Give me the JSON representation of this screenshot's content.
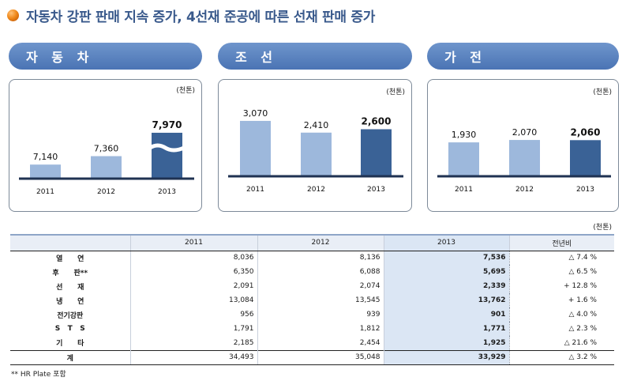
{
  "title": "자동차 강판 판매 지속 증가, 4선재 준공에 따른 선재 판매 증가",
  "sectors": [
    "자 동 차",
    "조 선",
    "가 전"
  ],
  "colors": {
    "light_bar": "#9db8dc",
    "dark_bar": "#3a6296",
    "axis": "#1f3252",
    "wave": "#ffffff"
  },
  "chart_data": [
    {
      "type": "bar",
      "title": "자 동 차",
      "unit": "(천톤)",
      "categories": [
        "2011",
        "2012",
        "2013"
      ],
      "values": [
        7140,
        7360,
        7970
      ],
      "value_labels": [
        "7,140",
        "7,360",
        "7,970"
      ],
      "axis_break": true
    },
    {
      "type": "bar",
      "title": "조 선",
      "unit": "(천톤)",
      "categories": [
        "2011",
        "2012",
        "2013"
      ],
      "values": [
        3070,
        2410,
        2600
      ],
      "value_labels": [
        "3,070",
        "2,410",
        "2,600"
      ],
      "axis_break": false
    },
    {
      "type": "bar",
      "title": "가 전",
      "unit": "(천톤)",
      "categories": [
        "2011",
        "2012",
        "2013"
      ],
      "values": [
        1930,
        2070,
        2060
      ],
      "value_labels": [
        "1,930",
        "2,070",
        "2,060"
      ],
      "axis_break": false
    },
    {
      "type": "table",
      "unit": "(천톤)",
      "columns": [
        "",
        "2011",
        "2012",
        "2013",
        "전년비"
      ],
      "rows": [
        {
          "label": "열      연",
          "v2011": "8,036",
          "v2012": "8,136",
          "v2013": "7,536",
          "change": "△ 7.4 %"
        },
        {
          "label": "후      판**",
          "v2011": "6,350",
          "v2012": "6,088",
          "v2013": "5,695",
          "change": "△ 6.5 %"
        },
        {
          "label": "선      재",
          "v2011": "2,091",
          "v2012": "2,074",
          "v2013": "2,339",
          "change": "+ 12.8 %"
        },
        {
          "label": "냉      연",
          "v2011": "13,084",
          "v2012": "13,545",
          "v2013": "13,762",
          "change": "+ 1.6 %"
        },
        {
          "label": "전기강판",
          "v2011": "956",
          "v2012": "939",
          "v2013": "901",
          "change": "△ 4.0 %"
        },
        {
          "label": "S   T   S",
          "v2011": "1,791",
          "v2012": "1,812",
          "v2013": "1,771",
          "change": "△ 2.3 %"
        },
        {
          "label": "기      타",
          "v2011": "2,185",
          "v2012": "2,454",
          "v2013": "1,925",
          "change": "△ 21.6 %"
        },
        {
          "label": "계",
          "v2011": "34,493",
          "v2012": "35,048",
          "v2013": "33,929",
          "change": "△ 3.2 %"
        }
      ]
    }
  ],
  "footnote": "** HR Plate 포함"
}
